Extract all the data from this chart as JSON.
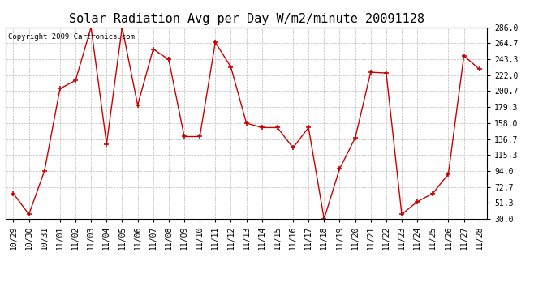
{
  "title": "Solar Radiation Avg per Day W/m2/minute 20091128",
  "copyright": "Copyright 2009 Cartronics.com",
  "x_labels": [
    "10/29",
    "10/30",
    "10/31",
    "11/01",
    "11/02",
    "11/03",
    "11/04",
    "11/05",
    "11/06",
    "11/07",
    "11/08",
    "11/09",
    "11/10",
    "11/11",
    "11/12",
    "11/13",
    "11/14",
    "11/15",
    "11/16",
    "11/17",
    "11/18",
    "11/19",
    "11/20",
    "11/21",
    "11/22",
    "11/23",
    "11/24",
    "11/25",
    "11/26",
    "11/27",
    "11/28"
  ],
  "y_values": [
    64,
    36,
    94,
    204,
    215,
    286,
    130,
    286,
    182,
    257,
    243,
    140,
    140,
    266,
    233,
    158,
    152,
    152,
    125,
    152,
    30,
    97,
    138,
    226,
    225,
    36,
    53,
    64,
    90,
    248,
    230
  ],
  "y_min": 30.0,
  "y_max": 286.0,
  "y_ticks": [
    30.0,
    51.3,
    72.7,
    94.0,
    115.3,
    136.7,
    158.0,
    179.3,
    200.7,
    222.0,
    243.3,
    264.7,
    286.0
  ],
  "line_color": "#cc0000",
  "marker_color": "#cc0000",
  "bg_color": "#ffffff",
  "grid_color": "#bbbbbb",
  "title_fontsize": 11,
  "copyright_fontsize": 6.5,
  "tick_fontsize": 7
}
